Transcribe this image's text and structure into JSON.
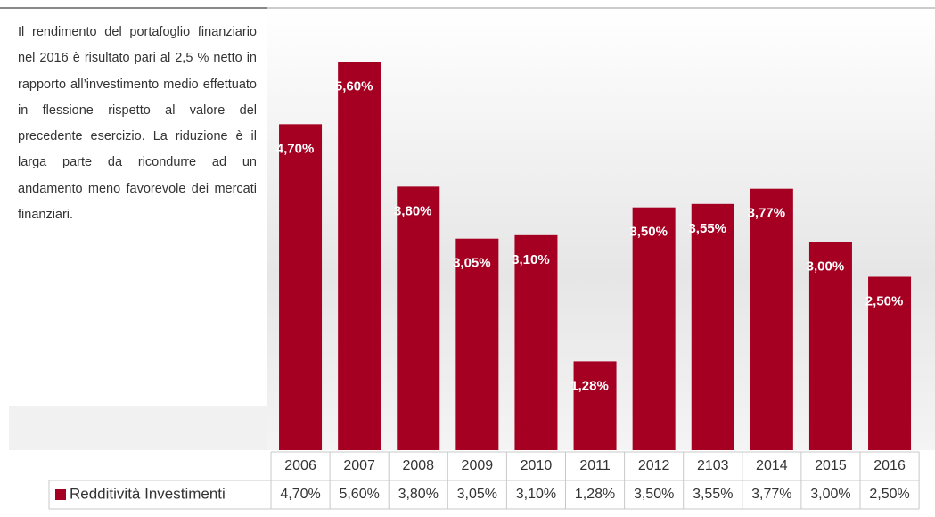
{
  "text": "Il rendimento del portafoglio finanziario nel 2016 è risultato pari al 2,5 % netto in rapporto all’investimento medio effettuato in flessione rispetto al valore del precedente esercizio. La riduzione è il larga parte da ricondurre ad un andamento meno favorevole dei mercati finanziari.",
  "chart_data": {
    "type": "bar",
    "categories": [
      "2006",
      "2007",
      "2008",
      "2009",
      "2010",
      "2011",
      "2012",
      "2103",
      "2014",
      "2015",
      "2016"
    ],
    "series": [
      {
        "name": "Redditività Investimenti",
        "color": "#a50021",
        "values": [
          4.7,
          5.6,
          3.8,
          3.05,
          3.1,
          1.28,
          3.5,
          3.55,
          3.77,
          3.0,
          2.5
        ],
        "value_labels": [
          "4,70%",
          "5,60%",
          "3,80%",
          "3,05%",
          "3,10%",
          "1,28%",
          "3,50%",
          "3,55%",
          "3,77%",
          "3,00%",
          "2,50%"
        ]
      }
    ]
  }
}
